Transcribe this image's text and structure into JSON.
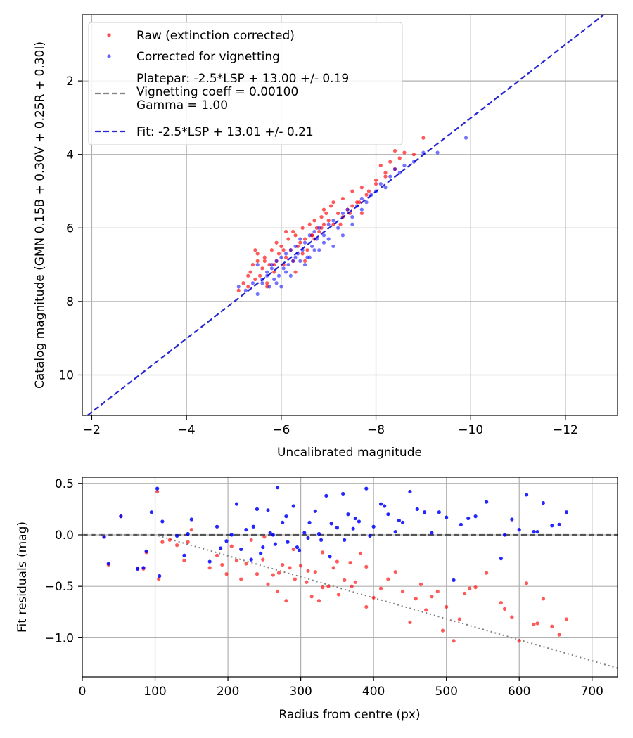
{
  "colors": {
    "raw": "#ff0000",
    "corrected": "#0000ff",
    "platepar_line": "#808080",
    "fit_line": "#0000cc",
    "grid": "#b0b0b0",
    "residual_trend": "#808080"
  },
  "chart_data": [
    {
      "type": "scatter",
      "xlabel": "Uncalibrated magnitude",
      "ylabel": "Catalog magnitude (GMN 0.15B + 0.30V + 0.25R + 0.30I)",
      "xlim": [
        -1.8,
        -13.1
      ],
      "ylim": [
        11.1,
        0.2
      ],
      "x_ticks": [
        -2,
        -4,
        -6,
        -8,
        -10,
        -12
      ],
      "x_tick_labels": [
        "−2",
        "−4",
        "−6",
        "−8",
        "−10",
        "−12"
      ],
      "y_ticks": [
        2,
        4,
        6,
        8,
        10
      ],
      "y_tick_labels": [
        "2",
        "4",
        "6",
        "8",
        "10"
      ],
      "grid": true,
      "legend_position": "top-left",
      "legend": [
        {
          "label": "Raw (extinction corrected)",
          "kind": "marker",
          "color_key": "raw"
        },
        {
          "label": "Corrected for vignetting",
          "kind": "marker",
          "color_key": "corrected"
        },
        {
          "label": "Platepar: -2.5*LSP + 13.00 +/- 0.19\nVignetting coeff = 0.00100\nGamma = 1.00",
          "kind": "dashed",
          "color_key": "platepar_line"
        },
        {
          "label": "Fit: -2.5*LSP + 13.01 +/- 0.21",
          "kind": "dashed",
          "color_key": "fit_line"
        }
      ],
      "fit_line": {
        "slope": 1.0,
        "intercept": 13.01
      },
      "series": [
        {
          "name": "Raw (extinction corrected)",
          "x": [
            -5.1,
            -5.2,
            -5.3,
            -5.35,
            -5.4,
            -5.45,
            -5.5,
            -5.55,
            -5.6,
            -5.65,
            -5.7,
            -5.75,
            -5.8,
            -5.85,
            -5.9,
            -5.95,
            -6.0,
            -6.05,
            -6.1,
            -6.15,
            -6.2,
            -6.25,
            -6.3,
            -6.35,
            -6.4,
            -6.45,
            -6.5,
            -6.55,
            -6.6,
            -6.65,
            -6.7,
            -6.75,
            -6.8,
            -6.85,
            -6.9,
            -6.95,
            -7.0,
            -7.1,
            -7.2,
            -7.3,
            -7.4,
            -7.5,
            -7.6,
            -7.7,
            -7.8,
            -8.0,
            -8.1,
            -8.2,
            -8.3,
            -8.4,
            -8.5,
            -8.6,
            -8.8,
            -9.0,
            -5.3,
            -5.5,
            -5.7,
            -5.9,
            -6.1,
            -6.3,
            -6.5,
            -6.7,
            -6.9,
            -7.1,
            -7.3,
            -7.5,
            -7.7,
            -8.0,
            -8.2,
            -8.4,
            -5.45,
            -5.65,
            -5.85,
            -6.05,
            -6.25,
            -6.45,
            -6.65,
            -6.85,
            -7.05,
            -7.25,
            -7.45,
            -7.65,
            -7.85
          ],
          "y": [
            7.7,
            7.5,
            7.6,
            7.2,
            7.0,
            7.4,
            6.9,
            7.3,
            7.1,
            6.8,
            7.5,
            7.0,
            6.6,
            7.2,
            6.9,
            6.7,
            6.5,
            7.0,
            6.8,
            6.3,
            6.6,
            6.9,
            6.2,
            6.5,
            6.4,
            6.0,
            6.3,
            6.6,
            5.9,
            6.2,
            5.8,
            6.0,
            6.1,
            5.7,
            5.9,
            5.6,
            5.8,
            5.3,
            5.6,
            5.2,
            5.5,
            5.0,
            5.3,
            4.9,
            5.1,
            4.7,
            4.3,
            4.5,
            4.2,
            3.9,
            4.1,
            3.95,
            4.0,
            3.55,
            7.3,
            6.7,
            7.6,
            6.4,
            6.1,
            7.2,
            6.9,
            6.3,
            5.5,
            5.9,
            5.7,
            5.4,
            5.6,
            4.8,
            4.6,
            4.4,
            6.6,
            6.9,
            7.0,
            6.6,
            6.1,
            6.7,
            6.2,
            6.0,
            5.4,
            5.9,
            5.6,
            5.3,
            5.0
          ]
        },
        {
          "name": "Corrected for vignetting",
          "x": [
            -5.1,
            -5.25,
            -5.4,
            -5.5,
            -5.6,
            -5.7,
            -5.75,
            -5.8,
            -5.85,
            -5.9,
            -5.95,
            -6.0,
            -6.05,
            -6.1,
            -6.15,
            -6.2,
            -6.25,
            -6.3,
            -6.35,
            -6.4,
            -6.45,
            -6.5,
            -6.55,
            -6.6,
            -6.65,
            -6.7,
            -6.75,
            -6.8,
            -6.9,
            -7.0,
            -7.1,
            -7.2,
            -7.3,
            -7.4,
            -7.5,
            -7.6,
            -7.7,
            -7.8,
            -7.9,
            -8.0,
            -8.1,
            -8.2,
            -8.3,
            -8.4,
            -8.5,
            -8.6,
            -8.8,
            -9.0,
            -9.3,
            -9.9,
            -5.5,
            -5.7,
            -5.9,
            -6.1,
            -6.3,
            -6.5,
            -6.7,
            -6.9,
            -7.1,
            -7.3,
            -7.5,
            -7.7,
            -5.6,
            -5.8,
            -6.0,
            -6.2,
            -6.4,
            -6.6,
            -6.8,
            -7.0
          ],
          "y": [
            7.6,
            7.7,
            7.5,
            7.8,
            7.4,
            7.2,
            7.6,
            7.1,
            7.4,
            6.9,
            7.3,
            6.8,
            7.1,
            6.7,
            7.0,
            6.6,
            6.9,
            6.5,
            6.7,
            6.3,
            6.6,
            6.4,
            6.8,
            6.2,
            6.5,
            6.1,
            6.3,
            6.0,
            6.2,
            5.9,
            5.8,
            6.0,
            5.6,
            5.5,
            5.7,
            5.4,
            5.2,
            5.3,
            5.1,
            5.0,
            4.8,
            4.9,
            4.6,
            4.4,
            4.5,
            4.3,
            4.2,
            3.95,
            3.95,
            3.55,
            7.0,
            7.3,
            7.5,
            7.2,
            6.8,
            7.0,
            6.6,
            6.4,
            6.5,
            6.2,
            5.9,
            5.5,
            7.5,
            7.0,
            7.6,
            7.3,
            6.9,
            6.8,
            6.6,
            6.3
          ]
        }
      ]
    },
    {
      "type": "scatter",
      "xlabel": "Radius from centre (px)",
      "ylabel": "Fit residuals (mag)",
      "xlim": [
        0,
        735
      ],
      "ylim": [
        -1.38,
        0.56
      ],
      "x_ticks": [
        0,
        100,
        200,
        300,
        400,
        500,
        600,
        700
      ],
      "x_tick_labels": [
        "0",
        "100",
        "200",
        "300",
        "400",
        "500",
        "600",
        "700"
      ],
      "y_ticks": [
        0.5,
        0.0,
        -0.5,
        -1.0
      ],
      "y_tick_labels": [
        "0.5",
        "0.0",
        "−0.5",
        "−1.0"
      ],
      "grid": true,
      "zero_line": 0.0,
      "trend": {
        "start_radius": 100,
        "coeff": 0.00204
      },
      "series": [
        {
          "name": "Raw (extinction corrected)",
          "x": [
            30,
            36,
            53,
            76,
            84,
            88,
            103,
            105,
            110,
            120,
            130,
            140,
            145,
            150,
            175,
            185,
            192,
            198,
            205,
            212,
            218,
            225,
            232,
            240,
            248,
            255,
            262,
            268,
            275,
            280,
            285,
            292,
            300,
            308,
            315,
            320,
            325,
            330,
            338,
            345,
            352,
            360,
            368,
            375,
            382,
            390,
            400,
            410,
            420,
            430,
            440,
            450,
            458,
            465,
            472,
            480,
            488,
            495,
            500,
            510,
            518,
            525,
            532,
            540,
            555,
            575,
            580,
            590,
            600,
            610,
            620,
            625,
            633,
            645,
            655,
            665,
            250,
            270,
            290,
            310,
            330,
            350,
            370,
            390
          ],
          "y": [
            -0.02,
            -0.29,
            0.18,
            -0.33,
            -0.33,
            -0.17,
            0.42,
            -0.43,
            -0.07,
            -0.05,
            -0.1,
            -0.25,
            -0.07,
            0.05,
            -0.32,
            -0.2,
            -0.29,
            -0.38,
            -0.11,
            -0.25,
            -0.43,
            -0.28,
            -0.05,
            -0.38,
            -0.24,
            -0.48,
            -0.39,
            -0.55,
            -0.29,
            -0.64,
            -0.32,
            -0.43,
            -0.3,
            -0.46,
            -0.6,
            -0.36,
            -0.64,
            -0.51,
            -0.5,
            -0.32,
            -0.58,
            -0.44,
            -0.27,
            -0.46,
            -0.18,
            -0.7,
            -0.61,
            -0.52,
            -0.43,
            -0.36,
            -0.55,
            -0.85,
            -0.62,
            -0.48,
            -0.73,
            -0.6,
            -0.55,
            -0.93,
            -0.7,
            -1.03,
            -0.82,
            -0.57,
            -0.52,
            -0.51,
            -0.37,
            -0.66,
            -0.72,
            -0.8,
            -1.03,
            -0.47,
            -0.87,
            -0.86,
            -0.62,
            -0.89,
            -0.97,
            -0.82,
            -0.02,
            -0.37,
            -0.14,
            -0.35,
            -0.17,
            -0.26,
            -0.5,
            -0.31
          ]
        },
        {
          "name": "Corrected for vignetting",
          "x": [
            30,
            36,
            53,
            76,
            84,
            88,
            95,
            103,
            106,
            110,
            130,
            140,
            145,
            150,
            175,
            185,
            190,
            198,
            205,
            212,
            218,
            225,
            232,
            240,
            248,
            255,
            262,
            268,
            275,
            282,
            290,
            298,
            305,
            312,
            320,
            328,
            335,
            342,
            350,
            358,
            365,
            372,
            380,
            390,
            400,
            410,
            420,
            430,
            440,
            450,
            460,
            470,
            480,
            490,
            500,
            510,
            520,
            530,
            540,
            555,
            575,
            580,
            590,
            600,
            610,
            620,
            625,
            633,
            645,
            655,
            665,
            235,
            245,
            258,
            265,
            280,
            295,
            310,
            325,
            340,
            360,
            375,
            395,
            415,
            435
          ],
          "y": [
            -0.02,
            -0.28,
            0.18,
            -0.33,
            -0.32,
            -0.16,
            0.22,
            0.45,
            -0.4,
            0.13,
            -0.01,
            -0.2,
            0.01,
            0.15,
            -0.26,
            0.08,
            -0.13,
            -0.06,
            0.0,
            0.3,
            -0.14,
            0.05,
            -0.24,
            0.25,
            -0.12,
            0.24,
            0.0,
            0.46,
            0.12,
            -0.07,
            0.28,
            -0.15,
            0.02,
            0.12,
            0.23,
            -0.05,
            0.38,
            0.11,
            0.07,
            0.4,
            0.2,
            0.06,
            0.13,
            0.45,
            0.08,
            0.3,
            0.2,
            0.03,
            0.12,
            0.42,
            0.25,
            0.22,
            0.02,
            0.22,
            0.17,
            -0.44,
            0.1,
            0.16,
            0.18,
            0.32,
            -0.23,
            0.0,
            0.15,
            0.05,
            0.39,
            0.03,
            0.03,
            0.31,
            0.09,
            0.1,
            0.22,
            0.08,
            -0.18,
            0.02,
            -0.09,
            0.18,
            -0.12,
            -0.03,
            0.01,
            -0.21,
            -0.05,
            0.16,
            -0.01,
            0.28,
            0.14
          ]
        }
      ]
    }
  ]
}
